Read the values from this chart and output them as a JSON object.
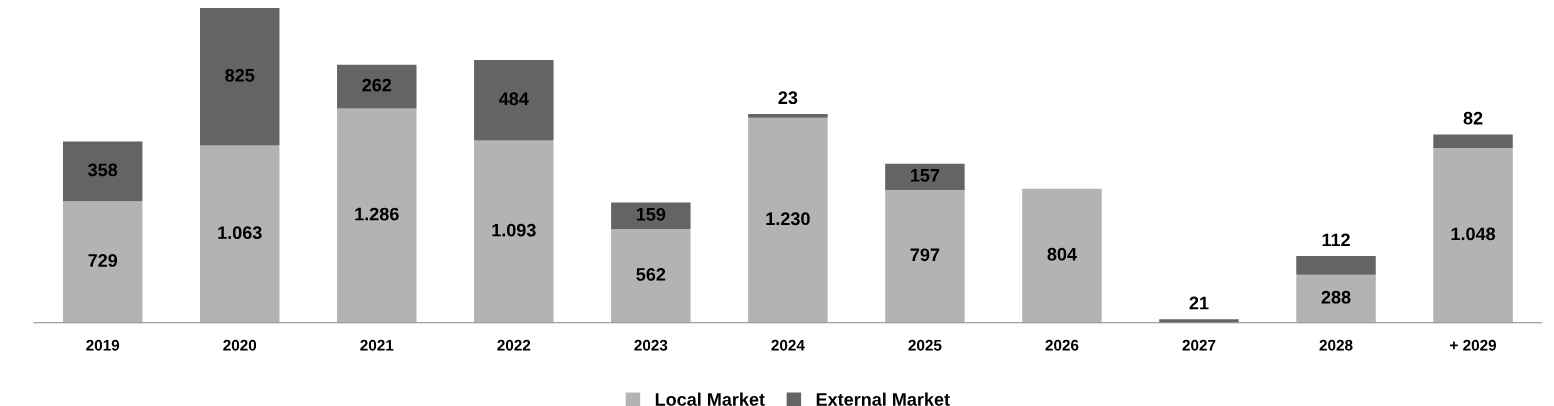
{
  "chart_data": {
    "type": "bar",
    "stacked": true,
    "categories": [
      "2019",
      "2020",
      "2021",
      "2022",
      "2023",
      "2024",
      "2025",
      "2026",
      "2027",
      "2028",
      "+ 2029"
    ],
    "series": [
      {
        "name": "Local Market",
        "color": "#b3b3b3",
        "values": [
          729,
          1063,
          1286,
          1093,
          562,
          1230,
          797,
          804,
          null,
          288,
          1048
        ],
        "value_labels": [
          "729",
          "1.063",
          "1.286",
          "1.093",
          "562",
          "1.230",
          "797",
          "804",
          null,
          "288",
          "1.048"
        ]
      },
      {
        "name": "External Market",
        "color": "#646464",
        "values": [
          358,
          825,
          262,
          484,
          159,
          23,
          157,
          null,
          21,
          112,
          82
        ],
        "value_labels": [
          "358",
          "825",
          "262",
          "484",
          "159",
          "23",
          "157",
          null,
          "21",
          "112",
          "82"
        ]
      }
    ],
    "legend": "bottom",
    "grid": false
  }
}
